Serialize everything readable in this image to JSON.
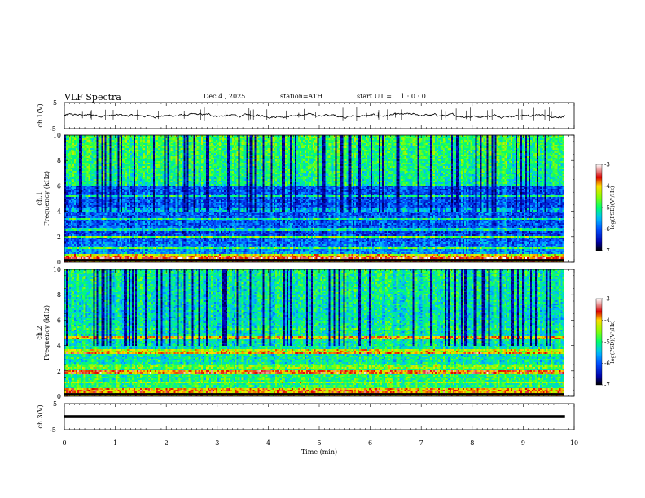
{
  "header": {
    "title": "VLF  Spectra",
    "date": "Dec.4  , 2025",
    "station": "station=ATH",
    "start_label": "start  UT  =",
    "start_time": "1 : 0 : 0"
  },
  "colors": {
    "waveform": "#000000",
    "colorbar_stops": [
      "#ffffff",
      "#e88a8a",
      "#d40000",
      "#ffcc00",
      "#80ff00",
      "#00ff60",
      "#00c8ff",
      "#0060ff",
      "#0000c0",
      "#000000"
    ]
  },
  "chart_data": [
    {
      "type": "line",
      "name": "ch1-waveform",
      "ylabel": "ch.1(V)",
      "ylim": [
        -5,
        5
      ],
      "ytick_labels": [
        "5",
        "-5"
      ],
      "xlim": [
        0,
        10
      ],
      "baseline": 0,
      "description_points": [
        [
          0,
          0.2
        ],
        [
          1,
          0.1
        ],
        [
          2,
          0.0
        ],
        [
          3,
          0.2
        ],
        [
          4,
          -0.1
        ],
        [
          5,
          0.3
        ],
        [
          6,
          0.0
        ],
        [
          7,
          0.2
        ],
        [
          8,
          0.1
        ],
        [
          9,
          0.0
        ],
        [
          9.8,
          0.1
        ]
      ]
    },
    {
      "type": "heatmap",
      "name": "ch1-spectrogram",
      "ylabel": "ch.1\nFrequency  (kHz)",
      "ylim": [
        0,
        10
      ],
      "ytick_labels": [
        "0",
        "2",
        "4",
        "6",
        "8",
        "10"
      ],
      "xlim": [
        0,
        9.8
      ],
      "colorbar": {
        "label": "log(PSD)(V²/Hz)",
        "range": [
          -7,
          -3
        ],
        "tick_labels": [
          "-3",
          "-4",
          "-5",
          "-6",
          "-7"
        ]
      },
      "bands": [
        {
          "f": 0.25,
          "level": -3.5
        },
        {
          "f": 0.6,
          "level": -4.2
        },
        {
          "f": 1.1,
          "level": -4.8
        },
        {
          "f": 1.95,
          "level": -4.6
        },
        {
          "f": 2.55,
          "level": -5.2
        },
        {
          "f": 3.4,
          "level": -5.0
        },
        {
          "f": 4.1,
          "level": -5.5
        },
        {
          "f": 5.2,
          "level": -5.0
        }
      ]
    },
    {
      "type": "heatmap",
      "name": "ch2-spectrogram",
      "ylabel": "ch.2\nFrequency  (kHz)",
      "ylim": [
        0,
        10
      ],
      "ytick_labels": [
        "0",
        "2",
        "4",
        "6",
        "8",
        "10"
      ],
      "xlim": [
        0,
        9.8
      ],
      "colorbar": {
        "label": "log(PSD)(V²/Hz)",
        "range": [
          -7,
          -3
        ],
        "tick_labels": [
          "-3",
          "-4",
          "-5",
          "-6",
          "-7"
        ]
      },
      "bands": [
        {
          "f": 0.6,
          "level": -4.0
        },
        {
          "f": 1.1,
          "level": -4.5
        },
        {
          "f": 1.9,
          "level": -3.8
        },
        {
          "f": 2.3,
          "level": -4.6
        },
        {
          "f": 3.4,
          "level": -3.9
        },
        {
          "f": 3.6,
          "level": -4.3
        },
        {
          "f": 4.6,
          "level": -4.0
        },
        {
          "f": 5.3,
          "level": -5.0
        }
      ]
    },
    {
      "type": "line",
      "name": "ch3-waveform",
      "ylabel": "ch.3(V)",
      "ylim": [
        -5,
        5
      ],
      "ytick_labels": [
        "5",
        "-5"
      ],
      "xlim": [
        0,
        10
      ],
      "baseline": 0,
      "xlabel": "Time  (min)",
      "xtick_labels": [
        "0",
        "1",
        "2",
        "3",
        "4",
        "5",
        "6",
        "7",
        "8",
        "9",
        "10"
      ]
    }
  ]
}
